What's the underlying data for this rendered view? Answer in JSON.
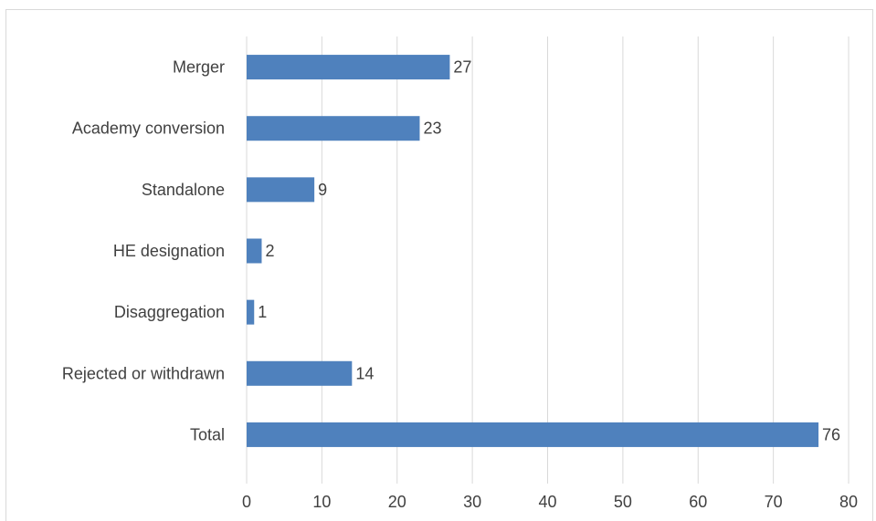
{
  "chart_data": {
    "type": "bar",
    "orientation": "horizontal",
    "categories": [
      "Merger",
      "Academy conversion",
      "Standalone",
      "HE designation",
      "Disaggregation",
      "Rejected or withdrawn",
      "Total"
    ],
    "values": [
      27,
      23,
      9,
      2,
      1,
      14,
      76
    ],
    "xlim": [
      0,
      80
    ],
    "xticks": [
      0,
      10,
      20,
      30,
      40,
      50,
      60,
      70,
      80
    ],
    "title": "",
    "xlabel": "",
    "ylabel": "",
    "grid": "vertical",
    "legend": "none",
    "data_labels": true,
    "colors": {
      "bar": "#4f81bd",
      "grid": "#d9d9d9",
      "text": "#404040"
    }
  }
}
